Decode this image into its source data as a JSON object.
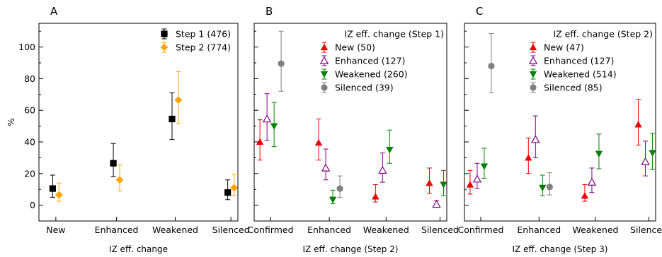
{
  "chart_data": [
    {
      "panel_label": "A",
      "type": "scatter",
      "categories": [
        "New",
        "Enhanced",
        "Weakened",
        "Silenced"
      ],
      "xlabel": "IZ eff. change",
      "ylabel": "%",
      "ylim": [
        -10,
        115
      ],
      "yticks": [
        0,
        20,
        40,
        60,
        80,
        100
      ],
      "legend_title": "",
      "legend_position": "top-right",
      "series": [
        {
          "name": "Step 1 (476)",
          "marker": "square",
          "color": "#000000",
          "values": [
            10.5,
            26.5,
            54.5,
            8
          ],
          "lower": [
            5,
            18,
            41.5,
            3.5
          ],
          "upper": [
            19,
            39,
            71,
            16
          ]
        },
        {
          "name": "Step 2 (774)",
          "marker": "diamond",
          "color": "#FFA500",
          "values": [
            6.5,
            16,
            66.5,
            11
          ],
          "lower": [
            2.5,
            9,
            51.5,
            6
          ],
          "upper": [
            14,
            25.5,
            84.5,
            19.5
          ]
        }
      ]
    },
    {
      "panel_label": "B",
      "type": "scatter",
      "categories": [
        "Confirmed",
        "Enhanced",
        "Weakened",
        "Silenced"
      ],
      "xlabel": "IZ eff. change (Step 2)",
      "ylabel": "",
      "ylim": [
        -10,
        115
      ],
      "yticks": [
        0,
        20,
        40,
        60,
        80,
        100
      ],
      "legend_title": "IZ eff. change (Step 1)",
      "legend_position": "top-right",
      "series": [
        {
          "name": "New (50)",
          "marker": "triangle-up-filled",
          "color": "#EE0000",
          "values": [
            40,
            39.5,
            5.5,
            14
          ],
          "lower": [
            28.5,
            28.5,
            2,
            7.5
          ],
          "upper": [
            54,
            54.5,
            13,
            23.5
          ]
        },
        {
          "name": "Enhanced (127)",
          "marker": "triangle-up-open",
          "color": "#800080",
          "values": [
            54.5,
            23.5,
            22,
            0.5
          ],
          "lower": [
            41,
            16,
            14.5,
            0
          ],
          "upper": [
            70.5,
            35.5,
            33,
            3
          ]
        },
        {
          "name": "Weakened (260)",
          "marker": "triangle-down-filled",
          "color": "#008000",
          "values": [
            50,
            3.5,
            35,
            13
          ],
          "lower": [
            37,
            1,
            26.5,
            6
          ],
          "upper": [
            65,
            9.5,
            47.5,
            22
          ]
        },
        {
          "name": "Silenced (39)",
          "marker": "circle",
          "color": "#808080",
          "values": [
            89.5,
            10.5,
            null,
            null
          ],
          "lower": [
            72,
            5,
            null,
            null
          ],
          "upper": [
            110,
            18.5,
            null,
            null
          ]
        }
      ]
    },
    {
      "panel_label": "C",
      "type": "scatter",
      "categories": [
        "Confirmed",
        "Enhanced",
        "Weakened",
        "Silenced"
      ],
      "xlabel": "IZ eff. change (Step 3)",
      "ylabel": "",
      "ylim": [
        -10,
        115
      ],
      "yticks": [
        0,
        20,
        40,
        60,
        80,
        100
      ],
      "legend_title": "IZ eff. change (Step 2)",
      "legend_position": "top-right",
      "series": [
        {
          "name": "New (47)",
          "marker": "triangle-up-filled",
          "color": "#EE0000",
          "values": [
            13,
            30,
            6,
            51
          ],
          "lower": [
            7,
            20,
            2.5,
            38
          ],
          "upper": [
            22,
            42.5,
            13,
            67
          ]
        },
        {
          "name": "Enhanced (127)",
          "marker": "triangle-up-open",
          "color": "#800080",
          "values": [
            16.5,
            41.5,
            14.5,
            27.5
          ],
          "lower": [
            10.5,
            30,
            8,
            18.5
          ],
          "upper": [
            26.5,
            56.5,
            23.5,
            40.5
          ]
        },
        {
          "name": "Weakened (514)",
          "marker": "triangle-down-filled",
          "color": "#008000",
          "values": [
            24.5,
            11,
            32.5,
            33
          ],
          "lower": [
            17,
            6,
            23,
            22.5
          ],
          "upper": [
            36,
            19,
            45,
            45.5
          ]
        },
        {
          "name": "Silenced (85)",
          "marker": "circle",
          "color": "#808080",
          "values": [
            88,
            11.5,
            null,
            null
          ],
          "lower": [
            71,
            6.5,
            null,
            null
          ],
          "upper": [
            108.5,
            20.5,
            null,
            null
          ]
        }
      ]
    }
  ]
}
